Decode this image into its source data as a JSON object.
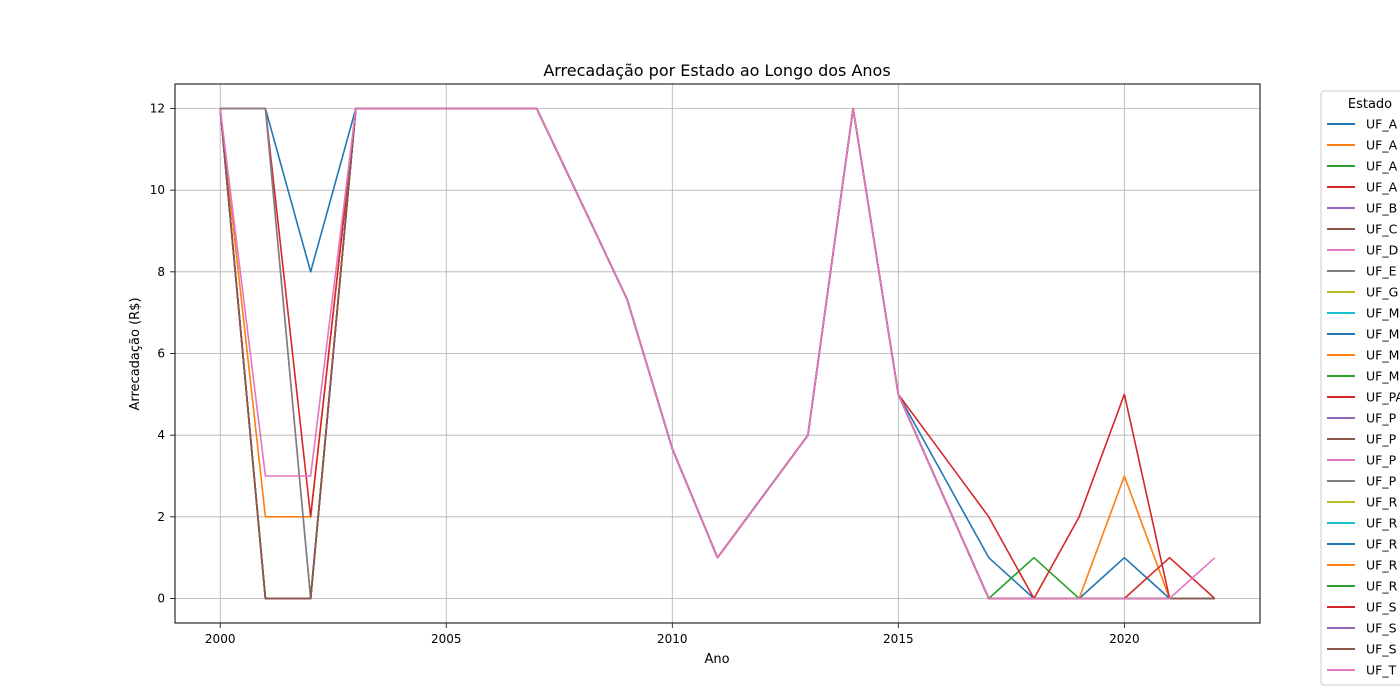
{
  "chart_data": {
    "type": "line",
    "title": "Arrecadação por Estado ao Longo dos Anos",
    "xlabel": "Ano",
    "ylabel": "Arrecadação (R$)",
    "xlim": [
      1999,
      2023
    ],
    "ylim": [
      -0.6,
      12.6
    ],
    "xticks": [
      2000,
      2005,
      2010,
      2015,
      2020
    ],
    "yticks": [
      0,
      2,
      4,
      6,
      8,
      10,
      12
    ],
    "grid": true,
    "legend": {
      "title": "Estado",
      "placement": "outside-right"
    },
    "x": [
      2000,
      2001,
      2002,
      2003,
      2004,
      2005,
      2006,
      2007,
      2008,
      2009,
      2010,
      2011,
      2012,
      2013,
      2014,
      2015,
      2016,
      2017,
      2018,
      2019,
      2020,
      2021,
      2022
    ],
    "series": [
      {
        "name": "UF_A",
        "color": "#1f77b4",
        "values": [
          12,
          12,
          8,
          12,
          12,
          12,
          12,
          12,
          9.67,
          7.33,
          3.67,
          1,
          2.5,
          4,
          12,
          5,
          3,
          1,
          0,
          0,
          1,
          0,
          0
        ]
      },
      {
        "name": "UF_A",
        "color": "#ff7f0e",
        "values": [
          12,
          2,
          2,
          12,
          12,
          12,
          12,
          12,
          9.67,
          7.33,
          3.67,
          1,
          2.5,
          4,
          12,
          5,
          2.5,
          0,
          0,
          0,
          3,
          0,
          0
        ]
      },
      {
        "name": "UF_A",
        "color": "#2ca02c",
        "values": [
          12,
          0,
          0,
          12,
          12,
          12,
          12,
          12,
          9.67,
          7.33,
          3.67,
          1,
          2.5,
          4,
          12,
          5,
          2.5,
          0,
          1,
          0,
          0,
          0,
          0
        ]
      },
      {
        "name": "UF_A",
        "color": "#d62728",
        "values": [
          12,
          12,
          2,
          12,
          12,
          12,
          12,
          12,
          9.67,
          7.33,
          3.67,
          1,
          2.5,
          4,
          12,
          5,
          3.5,
          2,
          0,
          2,
          5,
          0,
          0
        ]
      },
      {
        "name": "UF_B",
        "color": "#9467bd",
        "values": [
          12,
          0,
          0,
          12,
          12,
          12,
          12,
          12,
          9.67,
          7.33,
          3.67,
          1,
          2.5,
          4,
          12,
          5,
          2.5,
          0,
          0,
          0,
          0,
          0,
          0
        ]
      },
      {
        "name": "UF_C",
        "color": "#8c564b",
        "values": [
          12,
          0,
          0,
          12,
          12,
          12,
          12,
          12,
          9.67,
          7.33,
          3.67,
          1,
          2.5,
          4,
          12,
          5,
          2.5,
          0,
          0,
          0,
          0,
          0,
          0
        ]
      },
      {
        "name": "UF_D",
        "color": "#e377c2",
        "values": [
          12,
          12,
          0,
          12,
          12,
          12,
          12,
          12,
          9.67,
          7.33,
          3.67,
          1,
          2.5,
          4,
          12,
          5,
          2.5,
          0,
          0,
          0,
          0,
          0,
          0
        ]
      },
      {
        "name": "UF_E",
        "color": "#7f7f7f",
        "values": [
          12,
          12,
          0,
          12,
          12,
          12,
          12,
          12,
          9.67,
          7.33,
          3.67,
          1,
          2.5,
          4,
          12,
          5,
          2.5,
          0,
          0,
          0,
          0,
          0,
          0
        ]
      },
      {
        "name": "UF_G",
        "color": "#bcbd22",
        "values": [
          12,
          0,
          0,
          12,
          12,
          12,
          12,
          12,
          9.67,
          7.33,
          3.67,
          1,
          2.5,
          4,
          12,
          5,
          2.5,
          0,
          0,
          0,
          0,
          0,
          0
        ]
      },
      {
        "name": "UF_M",
        "color": "#17becf",
        "values": [
          12,
          0,
          0,
          12,
          12,
          12,
          12,
          12,
          9.67,
          7.33,
          3.67,
          1,
          2.5,
          4,
          12,
          5,
          2.5,
          0,
          0,
          0,
          0,
          0,
          0
        ]
      },
      {
        "name": "UF_M",
        "color": "#1f77b4",
        "values": [
          12,
          0,
          0,
          12,
          12,
          12,
          12,
          12,
          9.67,
          7.33,
          3.67,
          1,
          2.5,
          4,
          12,
          5,
          2.5,
          0,
          0,
          0,
          0,
          0,
          0
        ]
      },
      {
        "name": "UF_M",
        "color": "#ff7f0e",
        "values": [
          12,
          0,
          0,
          12,
          12,
          12,
          12,
          12,
          9.67,
          7.33,
          3.67,
          1,
          2.5,
          4,
          12,
          5,
          2.5,
          0,
          0,
          0,
          0,
          0,
          0
        ]
      },
      {
        "name": "UF_M",
        "color": "#2ca02c",
        "values": [
          12,
          0,
          0,
          12,
          12,
          12,
          12,
          12,
          9.67,
          7.33,
          3.67,
          1,
          2.5,
          4,
          12,
          5,
          2.5,
          0,
          0,
          0,
          0,
          0,
          0
        ]
      },
      {
        "name": "UF_PA",
        "color": "#d62728",
        "values": [
          12,
          0,
          0,
          12,
          12,
          12,
          12,
          12,
          9.67,
          7.33,
          3.67,
          1,
          2.5,
          4,
          12,
          5,
          2.5,
          0,
          0,
          0,
          0,
          0,
          0
        ]
      },
      {
        "name": "UF_P",
        "color": "#9467bd",
        "values": [
          12,
          0,
          0,
          12,
          12,
          12,
          12,
          12,
          9.67,
          7.33,
          3.67,
          1,
          2.5,
          4,
          12,
          5,
          2.5,
          0,
          0,
          0,
          0,
          0,
          0
        ]
      },
      {
        "name": "UF_P",
        "color": "#8c564b",
        "values": [
          12,
          0,
          0,
          12,
          12,
          12,
          12,
          12,
          9.67,
          7.33,
          3.67,
          1,
          2.5,
          4,
          12,
          5,
          2.5,
          0,
          0,
          0,
          0,
          0,
          0
        ]
      },
      {
        "name": "UF_P",
        "color": "#e377c2",
        "values": [
          12,
          0,
          0,
          12,
          12,
          12,
          12,
          12,
          9.67,
          7.33,
          3.67,
          1,
          2.5,
          4,
          12,
          5,
          2.5,
          0,
          0,
          0,
          0,
          0,
          0
        ]
      },
      {
        "name": "UF_P",
        "color": "#7f7f7f",
        "values": [
          12,
          0,
          0,
          12,
          12,
          12,
          12,
          12,
          9.67,
          7.33,
          3.67,
          1,
          2.5,
          4,
          12,
          5,
          2.5,
          0,
          0,
          0,
          0,
          0,
          0
        ]
      },
      {
        "name": "UF_R",
        "color": "#bcbd22",
        "values": [
          12,
          0,
          0,
          12,
          12,
          12,
          12,
          12,
          9.67,
          7.33,
          3.67,
          1,
          2.5,
          4,
          12,
          5,
          2.5,
          0,
          0,
          0,
          0,
          0,
          0
        ]
      },
      {
        "name": "UF_R",
        "color": "#17becf",
        "values": [
          12,
          0,
          0,
          12,
          12,
          12,
          12,
          12,
          9.67,
          7.33,
          3.67,
          1,
          2.5,
          4,
          12,
          5,
          2.5,
          0,
          0,
          0,
          0,
          0,
          0
        ]
      },
      {
        "name": "UF_R",
        "color": "#1f77b4",
        "values": [
          12,
          0,
          0,
          12,
          12,
          12,
          12,
          12,
          9.67,
          7.33,
          3.67,
          1,
          2.5,
          4,
          12,
          5,
          2.5,
          0,
          0,
          0,
          0,
          0,
          0
        ]
      },
      {
        "name": "UF_R",
        "color": "#ff7f0e",
        "values": [
          12,
          0,
          0,
          12,
          12,
          12,
          12,
          12,
          9.67,
          7.33,
          3.67,
          1,
          2.5,
          4,
          12,
          5,
          2.5,
          0,
          0,
          0,
          0,
          0,
          0
        ]
      },
      {
        "name": "UF_R",
        "color": "#2ca02c",
        "values": [
          12,
          0,
          0,
          12,
          12,
          12,
          12,
          12,
          9.67,
          7.33,
          3.67,
          1,
          2.5,
          4,
          12,
          5,
          2.5,
          0,
          0,
          0,
          0,
          0,
          0
        ]
      },
      {
        "name": "UF_S",
        "color": "#d62728",
        "values": [
          12,
          0,
          0,
          12,
          12,
          12,
          12,
          12,
          9.67,
          7.33,
          3.67,
          1,
          2.5,
          4,
          12,
          5,
          2.5,
          0,
          0,
          0,
          0,
          1,
          0
        ]
      },
      {
        "name": "UF_S",
        "color": "#9467bd",
        "values": [
          12,
          0,
          0,
          12,
          12,
          12,
          12,
          12,
          9.67,
          7.33,
          3.67,
          1,
          2.5,
          4,
          12,
          5,
          2.5,
          0,
          0,
          0,
          0,
          0,
          0
        ]
      },
      {
        "name": "UF_S",
        "color": "#8c564b",
        "values": [
          12,
          0,
          0,
          12,
          12,
          12,
          12,
          12,
          9.67,
          7.33,
          3.67,
          1,
          2.5,
          4,
          12,
          5,
          2.5,
          0,
          0,
          0,
          0,
          0,
          0
        ]
      },
      {
        "name": "UF_T",
        "color": "#e377c2",
        "values": [
          12,
          3,
          3,
          12,
          12,
          12,
          12,
          12,
          9.67,
          7.33,
          3.67,
          1,
          2.5,
          4,
          12,
          5,
          2.5,
          0,
          0,
          0,
          0,
          0,
          1
        ]
      }
    ]
  }
}
